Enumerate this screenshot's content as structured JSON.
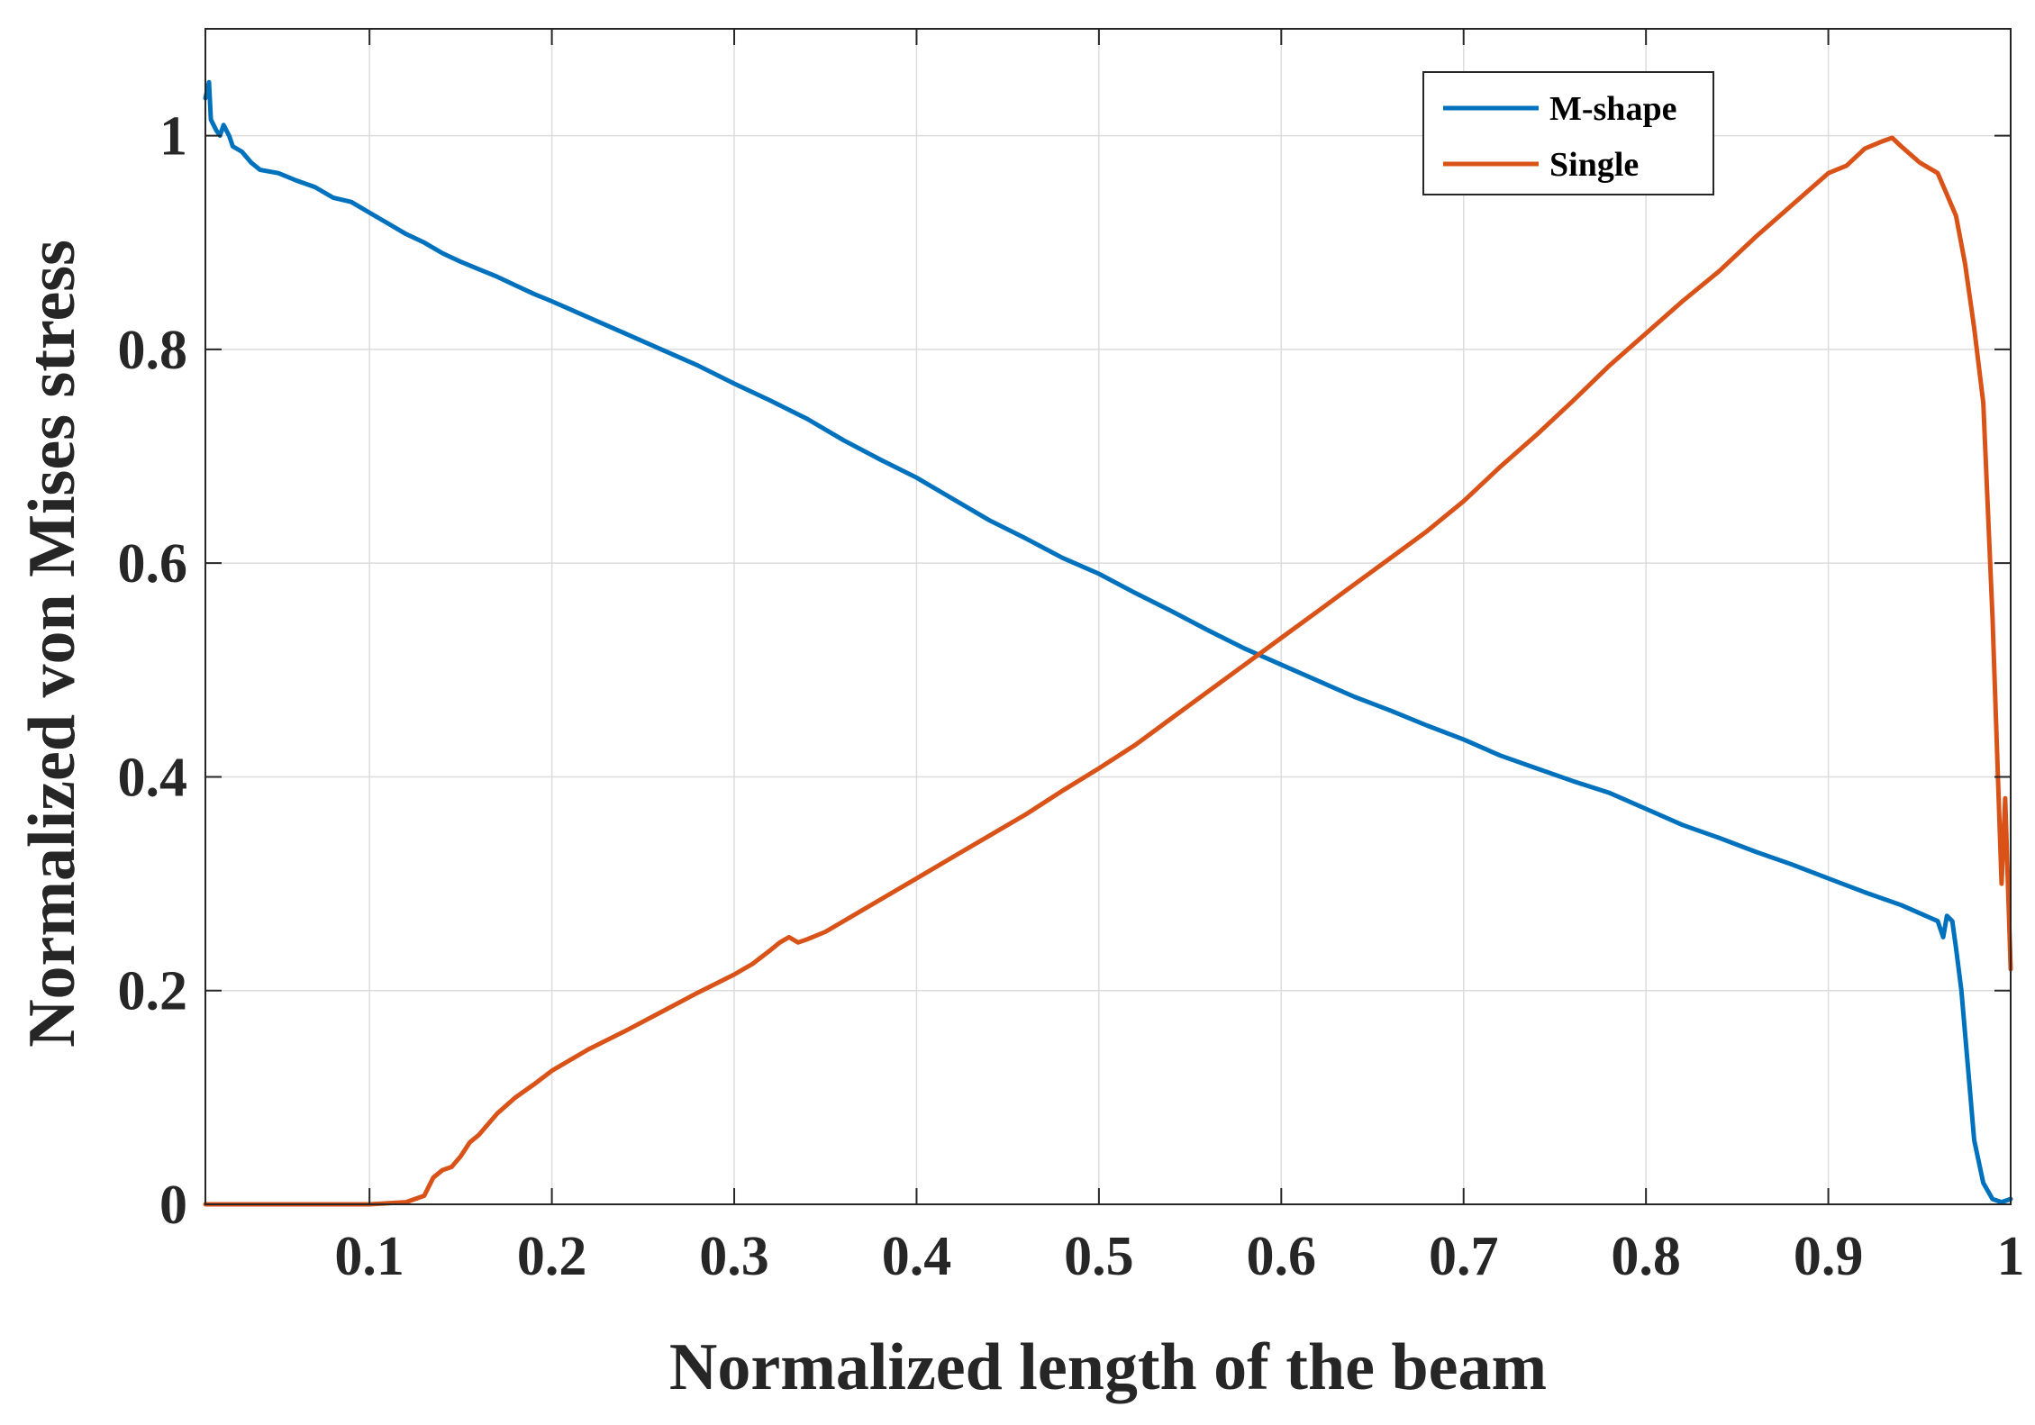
{
  "chart_data": {
    "type": "line",
    "title": "",
    "xlabel": "Normalized length of the beam",
    "ylabel": "Normalized von Mises stress",
    "xlim": [
      0.01,
      1.0
    ],
    "ylim": [
      0,
      1.1
    ],
    "xticks": [
      0.1,
      0.2,
      0.3,
      0.4,
      0.5,
      0.6,
      0.7,
      0.8,
      0.9,
      1.0
    ],
    "xtick_labels": [
      "0.1",
      "0.2",
      "0.3",
      "0.4",
      "0.5",
      "0.6",
      "0.7",
      "0.8",
      "0.9",
      "1"
    ],
    "yticks": [
      0,
      0.2,
      0.4,
      0.6,
      0.8,
      1.0
    ],
    "ytick_labels": [
      "0",
      "0.2",
      "0.4",
      "0.6",
      "0.8",
      "1"
    ],
    "grid": true,
    "legend_position": "top-right",
    "series": [
      {
        "name": "M-shape",
        "color": "#0072bd",
        "x": [
          0.01,
          0.012,
          0.013,
          0.016,
          0.018,
          0.02,
          0.023,
          0.025,
          0.03,
          0.035,
          0.04,
          0.05,
          0.06,
          0.07,
          0.08,
          0.09,
          0.1,
          0.11,
          0.12,
          0.13,
          0.14,
          0.15,
          0.16,
          0.17,
          0.18,
          0.19,
          0.2,
          0.22,
          0.24,
          0.26,
          0.28,
          0.3,
          0.32,
          0.34,
          0.36,
          0.38,
          0.4,
          0.42,
          0.44,
          0.46,
          0.48,
          0.5,
          0.52,
          0.54,
          0.56,
          0.58,
          0.6,
          0.62,
          0.64,
          0.66,
          0.68,
          0.7,
          0.72,
          0.74,
          0.76,
          0.78,
          0.8,
          0.82,
          0.84,
          0.86,
          0.88,
          0.9,
          0.92,
          0.94,
          0.96,
          0.963,
          0.965,
          0.968,
          0.97,
          0.973,
          0.976,
          0.98,
          0.985,
          0.99,
          0.995,
          1.0
        ],
        "y": [
          1.035,
          1.05,
          1.015,
          1.005,
          1.0,
          1.01,
          1.0,
          0.99,
          0.985,
          0.975,
          0.968,
          0.965,
          0.958,
          0.952,
          0.942,
          0.938,
          0.928,
          0.918,
          0.908,
          0.9,
          0.89,
          0.882,
          0.875,
          0.868,
          0.86,
          0.852,
          0.845,
          0.83,
          0.815,
          0.8,
          0.785,
          0.768,
          0.752,
          0.735,
          0.715,
          0.697,
          0.68,
          0.66,
          0.64,
          0.623,
          0.605,
          0.59,
          0.572,
          0.555,
          0.537,
          0.52,
          0.505,
          0.49,
          0.475,
          0.462,
          0.448,
          0.435,
          0.42,
          0.408,
          0.396,
          0.385,
          0.37,
          0.355,
          0.343,
          0.33,
          0.318,
          0.305,
          0.292,
          0.28,
          0.265,
          0.25,
          0.27,
          0.265,
          0.24,
          0.2,
          0.14,
          0.06,
          0.02,
          0.005,
          0.002,
          0.005
        ]
      },
      {
        "name": "Single",
        "color": "#d95319",
        "x": [
          0.01,
          0.05,
          0.1,
          0.12,
          0.13,
          0.135,
          0.14,
          0.145,
          0.15,
          0.155,
          0.16,
          0.17,
          0.18,
          0.19,
          0.2,
          0.22,
          0.24,
          0.26,
          0.28,
          0.3,
          0.31,
          0.32,
          0.325,
          0.33,
          0.335,
          0.34,
          0.35,
          0.36,
          0.38,
          0.4,
          0.42,
          0.44,
          0.46,
          0.48,
          0.5,
          0.52,
          0.54,
          0.56,
          0.58,
          0.6,
          0.62,
          0.64,
          0.66,
          0.68,
          0.7,
          0.72,
          0.74,
          0.76,
          0.78,
          0.8,
          0.82,
          0.84,
          0.86,
          0.88,
          0.9,
          0.91,
          0.92,
          0.93,
          0.935,
          0.94,
          0.95,
          0.96,
          0.965,
          0.97,
          0.975,
          0.98,
          0.985,
          0.99,
          0.995,
          0.997,
          1.0
        ],
        "y": [
          0.0,
          0.0,
          0.0,
          0.002,
          0.008,
          0.025,
          0.032,
          0.035,
          0.045,
          0.058,
          0.065,
          0.085,
          0.1,
          0.112,
          0.125,
          0.145,
          0.162,
          0.18,
          0.198,
          0.215,
          0.225,
          0.238,
          0.245,
          0.25,
          0.245,
          0.248,
          0.255,
          0.265,
          0.285,
          0.305,
          0.325,
          0.345,
          0.365,
          0.387,
          0.408,
          0.43,
          0.455,
          0.48,
          0.505,
          0.53,
          0.555,
          0.58,
          0.605,
          0.63,
          0.658,
          0.69,
          0.72,
          0.752,
          0.785,
          0.815,
          0.845,
          0.873,
          0.905,
          0.935,
          0.965,
          0.972,
          0.988,
          0.995,
          0.998,
          0.99,
          0.975,
          0.965,
          0.945,
          0.925,
          0.88,
          0.82,
          0.75,
          0.55,
          0.3,
          0.38,
          0.22
        ]
      }
    ]
  }
}
